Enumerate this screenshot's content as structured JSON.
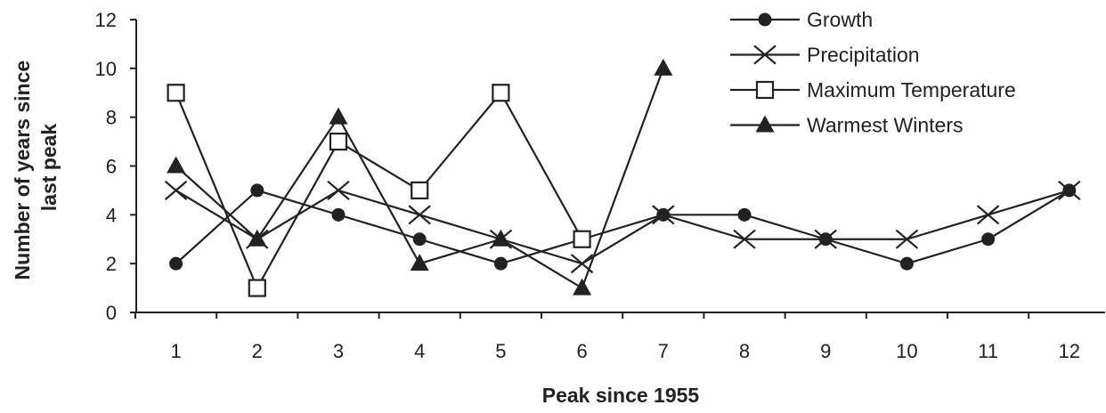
{
  "chart_data": {
    "type": "line",
    "title": "",
    "xlabel": "Peak since 1955",
    "ylabel": "Number of years since last peak",
    "ylabel_lines": [
      "Number of years since",
      "last peak"
    ],
    "categories": [
      1,
      2,
      3,
      4,
      5,
      6,
      7,
      8,
      9,
      10,
      11,
      12
    ],
    "x_tick_labels": [
      "1",
      "2",
      "3",
      "4",
      "5",
      "6",
      "7",
      "8",
      "9",
      "10",
      "11",
      "12"
    ],
    "ylim": [
      0,
      12
    ],
    "y_ticks": [
      0,
      2,
      4,
      6,
      8,
      10,
      12
    ],
    "y_tick_labels": [
      "0",
      "2",
      "4",
      "6",
      "8",
      "10",
      "12"
    ],
    "grid": false,
    "legend_position": "top-right",
    "series": [
      {
        "name": "Growth",
        "marker": "circle",
        "color": "#222222",
        "values": [
          2,
          5,
          4,
          3,
          2,
          3,
          4,
          4,
          3,
          2,
          3,
          5
        ]
      },
      {
        "name": "Precipitation",
        "marker": "x",
        "color": "#222222",
        "values": [
          5,
          3,
          5,
          4,
          3,
          2,
          4,
          3,
          3,
          3,
          4,
          5
        ]
      },
      {
        "name": "Maximum Temperature",
        "marker": "square",
        "color": "#222222",
        "values": [
          9,
          1,
          7,
          5,
          9,
          3,
          null,
          null,
          null,
          null,
          null,
          null
        ]
      },
      {
        "name": "Warmest Winters",
        "marker": "triangle",
        "color": "#222222",
        "values": [
          6,
          3,
          8,
          2,
          3,
          1,
          10,
          null,
          null,
          null,
          null,
          null
        ]
      }
    ]
  }
}
